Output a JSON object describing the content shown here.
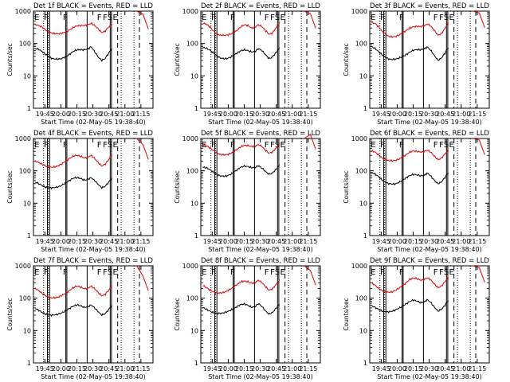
{
  "colors": {
    "events": "#000000",
    "lld": "#dd0000",
    "axes": "#000000",
    "background": "#ffffff"
  },
  "axes_common": {
    "ylabel": "Counts/sec",
    "xlabel": "Start Time (02-May-05 19:38:40)",
    "yscale": "log",
    "ylim": [
      1,
      1000
    ],
    "yticks": [
      "1",
      "10",
      "100",
      "1000"
    ],
    "xlim_minutes": [
      -10.7,
      101.3
    ]
  },
  "chart_data": [
    {
      "type": "line",
      "title": "Det 1f BLACK = Events, RED = LLD",
      "xticks": [
        "19:45",
        "20:00",
        "20:15",
        "20:30",
        "20:45",
        "21:00",
        "21:15"
      ],
      "flags": [
        "E",
        "F",
        "F",
        "F",
        "F",
        "S",
        "E"
      ],
      "series": [
        {
          "name": "Events",
          "color": "#000000",
          "values": [
            70,
            66,
            56,
            46,
            38,
            34,
            33,
            33,
            36,
            40,
            48,
            58,
            64,
            64,
            64,
            67,
            80,
            55,
            38,
            30,
            34,
            50,
            70
          ]
        },
        {
          "name": "LLD",
          "color": "#dd0000",
          "values": [
            380,
            360,
            320,
            260,
            225,
            205,
            200,
            200,
            215,
            235,
            270,
            320,
            350,
            360,
            360,
            375,
            420,
            360,
            280,
            220,
            240,
            320,
            400
          ]
        }
      ]
    },
    {
      "type": "line",
      "title": "Det 2f BLACK = Events, RED = LLD",
      "xticks": [
        "19:45",
        "20:00",
        "20:15",
        "20:30",
        "20:45",
        "21:00",
        "21:15"
      ],
      "flags": [
        "E",
        "F",
        "F",
        "F",
        "F",
        "S",
        "E"
      ],
      "series": [
        {
          "name": "Events",
          "color": "#000000",
          "values": [
            75,
            72,
            63,
            52,
            42,
            36,
            34,
            34,
            38,
            44,
            52,
            60,
            64,
            60,
            55,
            56,
            70,
            60,
            45,
            34,
            38,
            52,
            72
          ]
        },
        {
          "name": "LLD",
          "color": "#dd0000",
          "values": [
            420,
            400,
            330,
            250,
            200,
            180,
            180,
            182,
            195,
            220,
            260,
            330,
            380,
            360,
            300,
            320,
            380,
            330,
            250,
            190,
            210,
            300,
            420
          ]
        }
      ]
    },
    {
      "type": "line",
      "title": "Det 3f BLACK = Events, RED = LLD",
      "xticks": [
        "19:45",
        "20:00",
        "20:15",
        "20:30",
        "20:45",
        "21:00",
        "21:15"
      ],
      "flags": [
        "E",
        "F",
        "F",
        "F",
        "F",
        "S",
        "E"
      ],
      "series": [
        {
          "name": "Events",
          "color": "#000000",
          "values": [
            80,
            70,
            56,
            45,
            37,
            33,
            32,
            33,
            36,
            40,
            46,
            55,
            62,
            65,
            64,
            68,
            78,
            60,
            42,
            30,
            35,
            50,
            75
          ]
        },
        {
          "name": "LLD",
          "color": "#dd0000",
          "values": [
            450,
            420,
            330,
            240,
            190,
            165,
            160,
            165,
            185,
            215,
            255,
            300,
            330,
            340,
            335,
            350,
            400,
            340,
            250,
            180,
            200,
            290,
            440
          ]
        }
      ]
    },
    {
      "type": "line",
      "title": "Det 4f BLACK = Events, RED = LLD",
      "xticks": [
        "19:45",
        "20:00",
        "20:15",
        "20:30",
        "20:45",
        "21:00",
        "21:15"
      ],
      "flags": [
        "E",
        "F",
        "F",
        "F",
        "F",
        "S",
        "E"
      ],
      "series": [
        {
          "name": "Events",
          "color": "#000000",
          "values": [
            45,
            40,
            35,
            31,
            30,
            30,
            31,
            33,
            38,
            44,
            52,
            60,
            62,
            58,
            52,
            54,
            62,
            50,
            38,
            30,
            33,
            44,
            60
          ]
        },
        {
          "name": "LLD",
          "color": "#dd0000",
          "values": [
            200,
            180,
            160,
            140,
            130,
            130,
            135,
            150,
            175,
            210,
            250,
            290,
            300,
            280,
            250,
            260,
            300,
            240,
            180,
            140,
            160,
            220,
            320
          ]
        }
      ]
    },
    {
      "type": "line",
      "title": "Det 5f BLACK = Events, RED = LLD",
      "xticks": [
        "19:45",
        "20:00",
        "20:15",
        "20:30",
        "20:45",
        "21:00",
        "21:15"
      ],
      "flags": [
        "E",
        "F",
        "F",
        "F",
        "F",
        "S",
        "E"
      ],
      "series": [
        {
          "name": "Events",
          "color": "#000000",
          "values": [
            130,
            125,
            110,
            92,
            78,
            70,
            68,
            70,
            78,
            92,
            110,
            130,
            140,
            135,
            125,
            128,
            145,
            120,
            95,
            78,
            85,
            110,
            150
          ]
        },
        {
          "name": "LLD",
          "color": "#dd0000",
          "values": [
            620,
            600,
            520,
            430,
            360,
            320,
            310,
            315,
            345,
            400,
            470,
            560,
            620,
            600,
            560,
            580,
            650,
            560,
            430,
            350,
            380,
            500,
            660
          ]
        }
      ]
    },
    {
      "type": "line",
      "title": "Det 6f BLACK = Events, RED = LLD",
      "xticks": [
        "19:45",
        "20:00",
        "20:15",
        "20:30",
        "20:45",
        "21:00",
        "21:15"
      ],
      "flags": [
        "E",
        "F",
        "F",
        "F",
        "F",
        "S",
        "E"
      ],
      "series": [
        {
          "name": "Events",
          "color": "#000000",
          "values": [
            90,
            80,
            66,
            52,
            44,
            40,
            39,
            40,
            45,
            52,
            62,
            72,
            78,
            75,
            70,
            72,
            85,
            68,
            50,
            40,
            45,
            62,
            88
          ]
        },
        {
          "name": "LLD",
          "color": "#dd0000",
          "values": [
            420,
            380,
            310,
            250,
            220,
            205,
            205,
            212,
            235,
            270,
            320,
            380,
            410,
            400,
            380,
            390,
            440,
            370,
            280,
            220,
            245,
            330,
            450
          ]
        }
      ]
    },
    {
      "type": "line",
      "title": "Det 7f BLACK = Events, RED = LLD",
      "xticks": [
        "19:45",
        "20:00",
        "20:15",
        "20:30",
        "20:45",
        "21:00",
        "21:15"
      ],
      "flags": [
        "E",
        "F",
        "F",
        "F",
        "F",
        "S",
        "E"
      ],
      "series": [
        {
          "name": "Events",
          "color": "#000000",
          "values": [
            48,
            42,
            36,
            32,
            30,
            30,
            31,
            33,
            37,
            42,
            50,
            58,
            62,
            58,
            52,
            54,
            62,
            50,
            38,
            30,
            33,
            44,
            60
          ]
        },
        {
          "name": "LLD",
          "color": "#dd0000",
          "values": [
            200,
            170,
            140,
            118,
            105,
            102,
            104,
            112,
            128,
            150,
            180,
            215,
            235,
            220,
            195,
            200,
            235,
            195,
            150,
            118,
            130,
            175,
            240
          ]
        }
      ]
    },
    {
      "type": "line",
      "title": "Det 8f BLACK = Events, RED = LLD",
      "xticks": [
        "19:45",
        "20:00",
        "20:15",
        "20:30",
        "20:45",
        "21:00",
        "21:15"
      ],
      "flags": [
        "E",
        "F",
        "F",
        "F",
        "F",
        "S",
        "E"
      ],
      "series": [
        {
          "name": "Events",
          "color": "#000000",
          "values": [
            52,
            46,
            40,
            36,
            34,
            34,
            35,
            38,
            42,
            48,
            56,
            64,
            66,
            60,
            52,
            55,
            68,
            55,
            40,
            32,
            36,
            48,
            66
          ]
        },
        {
          "name": "LLD",
          "color": "#dd0000",
          "values": [
            250,
            215,
            180,
            158,
            146,
            145,
            150,
            165,
            190,
            225,
            270,
            320,
            340,
            320,
            290,
            300,
            360,
            300,
            225,
            175,
            195,
            260,
            360
          ]
        }
      ]
    },
    {
      "type": "line",
      "title": "Det 9f BLACK = Events, RED = LLD",
      "xticks": [
        "19:45",
        "20:00",
        "20:15",
        "20:30",
        "20:45",
        "21:00",
        "21:15"
      ],
      "flags": [
        "E",
        "F",
        "F",
        "F",
        "F",
        "S",
        "E"
      ],
      "series": [
        {
          "name": "Events",
          "color": "#000000",
          "values": [
            58,
            52,
            45,
            40,
            38,
            38,
            40,
            44,
            50,
            58,
            68,
            80,
            88,
            82,
            72,
            75,
            90,
            72,
            52,
            40,
            45,
            60,
            85
          ]
        },
        {
          "name": "LLD",
          "color": "#dd0000",
          "values": [
            300,
            250,
            200,
            170,
            155,
            152,
            158,
            178,
            208,
            250,
            310,
            380,
            420,
            400,
            360,
            370,
            430,
            360,
            270,
            210,
            235,
            320,
            440
          ]
        }
      ]
    }
  ]
}
